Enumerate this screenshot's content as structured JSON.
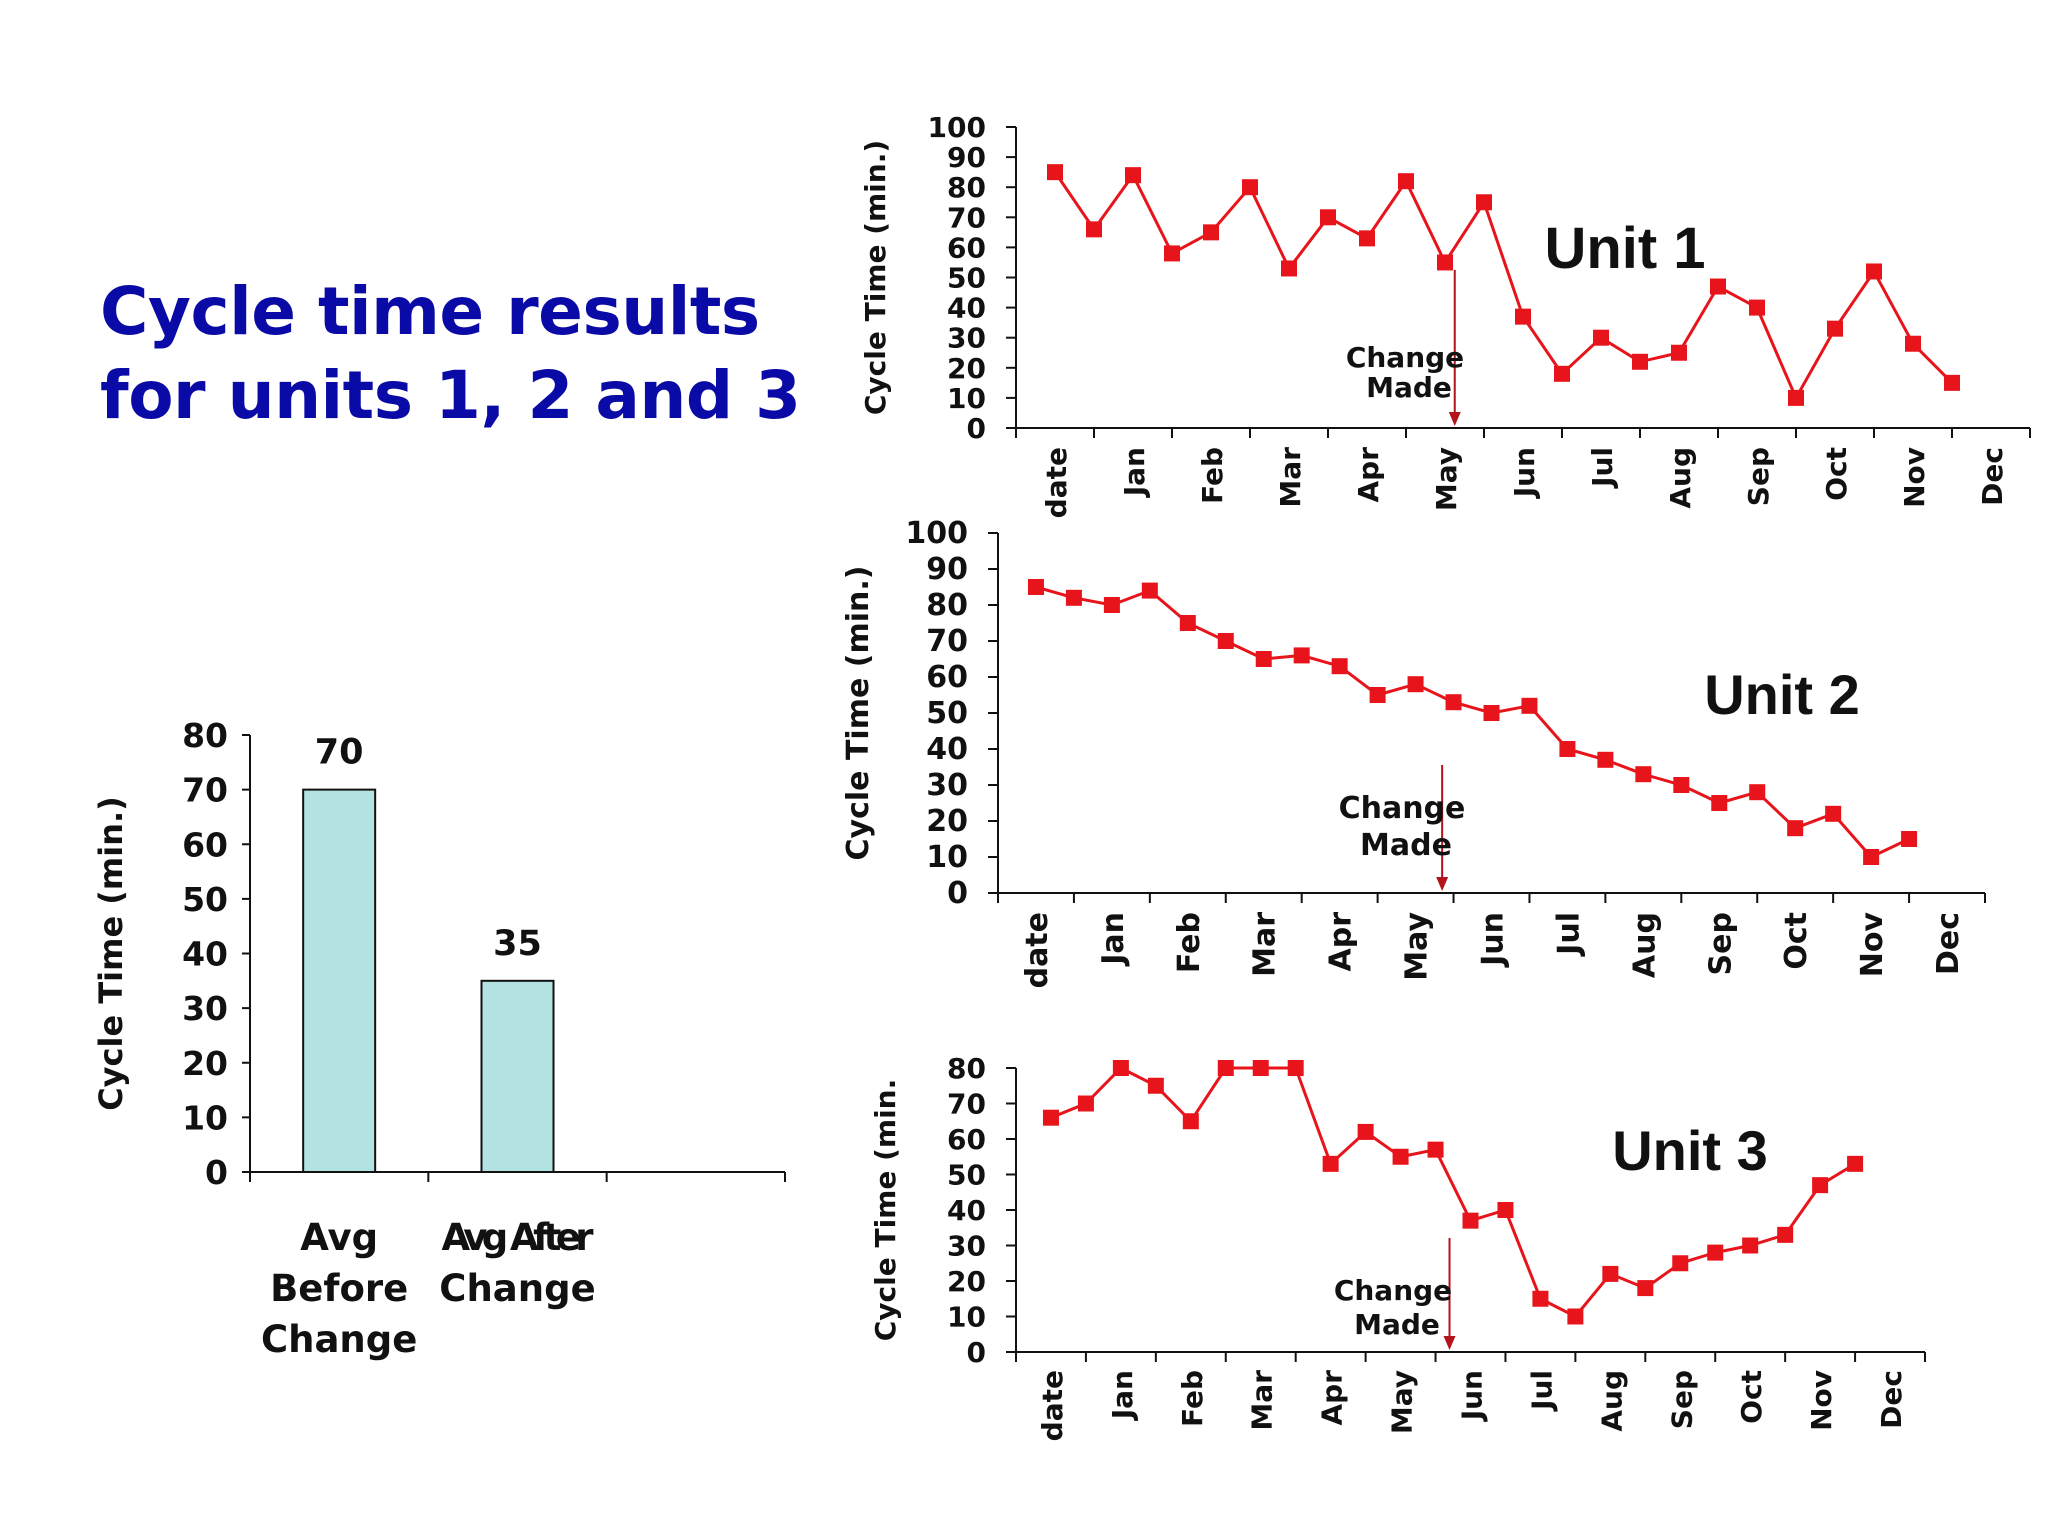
{
  "title": {
    "line1": "Cycle time results",
    "line2": "for units 1, 2 and 3"
  },
  "colors": {
    "title": "#0a0aa6",
    "series": "#e8141b",
    "bar_fill": "#b2e2e2",
    "axis": "#111111"
  },
  "chart_data": [
    {
      "type": "bar",
      "ylabel": "Cycle Time (min.)",
      "ylim": [
        0,
        80
      ],
      "yticks": [
        "0",
        "10",
        "20",
        "30",
        "40",
        "50",
        "60",
        "70",
        "80"
      ],
      "categories": [
        "Avg Before Change",
        "Avg After Change"
      ],
      "category_lines": [
        [
          "Avg",
          "Before",
          "Change"
        ],
        [
          "Avg After",
          "Change"
        ]
      ],
      "values": [
        70,
        35
      ],
      "value_labels": [
        "70",
        "35"
      ]
    },
    {
      "type": "line",
      "unit_label": "Unit 1",
      "ylabel": "Cycle Time (min.)",
      "ylim": [
        0,
        100
      ],
      "yticks": [
        "0",
        "10",
        "20",
        "30",
        "40",
        "50",
        "60",
        "70",
        "80",
        "90",
        "100"
      ],
      "xticks": [
        "date",
        "Jan",
        "Feb",
        "Mar",
        "Apr",
        "May",
        "Jun",
        "Jul",
        "Aug",
        "Sep",
        "Oct",
        "Nov",
        "Dec"
      ],
      "annotation": {
        "lines": [
          "Change",
          "Made"
        ],
        "x": 11.25
      },
      "values": [
        85,
        66,
        84,
        58,
        65,
        80,
        53,
        70,
        63,
        82,
        55,
        75,
        37,
        18,
        30,
        22,
        25,
        47,
        40,
        10,
        33,
        52,
        28,
        15
      ]
    },
    {
      "type": "line",
      "unit_label": "Unit 2",
      "ylabel": "Cycle Time (min.)",
      "ylim": [
        0,
        100
      ],
      "yticks": [
        "0",
        "10",
        "20",
        "30",
        "40",
        "50",
        "60",
        "70",
        "80",
        "90",
        "100"
      ],
      "xticks": [
        "date",
        "Jan",
        "Feb",
        "Mar",
        "Apr",
        "May",
        "Jun",
        "Jul",
        "Aug",
        "Sep",
        "Oct",
        "Nov",
        "Dec"
      ],
      "annotation": {
        "lines": [
          "Change",
          "Made"
        ],
        "x": 11.7
      },
      "values": [
        85,
        82,
        80,
        84,
        75,
        70,
        65,
        66,
        63,
        55,
        58,
        53,
        50,
        52,
        40,
        37,
        33,
        30,
        25,
        28,
        18,
        22,
        10,
        15
      ]
    },
    {
      "type": "line",
      "unit_label": "Unit 3",
      "ylabel": "Cycle Time (min.",
      "ylim": [
        0,
        80
      ],
      "yticks": [
        "0",
        "10",
        "20",
        "30",
        "40",
        "50",
        "60",
        "70",
        "80"
      ],
      "xticks": [
        "date",
        "Jan",
        "Feb",
        "Mar",
        "Apr",
        "May",
        "Jun",
        "Jul",
        "Aug",
        "Sep",
        "Oct",
        "Nov",
        "Dec"
      ],
      "annotation": {
        "lines": [
          "Change",
          "Made"
        ],
        "x": 12.4
      },
      "values": [
        66,
        70,
        85,
        75,
        65,
        82,
        80,
        84,
        53,
        62,
        55,
        57,
        37,
        40,
        15,
        10,
        22,
        18,
        25,
        28,
        30,
        33,
        47,
        53
      ]
    }
  ]
}
